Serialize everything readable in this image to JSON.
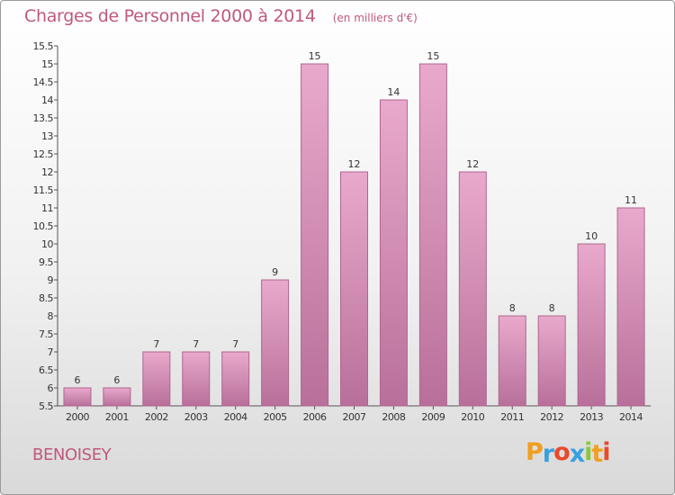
{
  "title": "Charges de Personnel 2000 à 2014",
  "subtitle": "(en milliers d'€)",
  "commune": "BENOISEY",
  "logo": {
    "text": "Proxiti",
    "letters": [
      {
        "ch": "P",
        "color": "#f0a020"
      },
      {
        "ch": "r",
        "color": "#3aa0e0"
      },
      {
        "ch": "o",
        "color": "#e84a2a"
      },
      {
        "ch": "x",
        "color": "#3aa0e0"
      },
      {
        "ch": "i",
        "color": "#8ac83a"
      },
      {
        "ch": "t",
        "color": "#f0a020"
      },
      {
        "ch": "i",
        "color": "#e84a2a"
      }
    ]
  },
  "colors": {
    "bar_top": "#e9a9cc",
    "bar_bottom": "#b8709a",
    "bar_border": "#b06590",
    "title": "#c0587e",
    "text": "#333333"
  },
  "chart_data": {
    "type": "bar",
    "categories": [
      "2000",
      "2001",
      "2002",
      "2003",
      "2004",
      "2005",
      "2006",
      "2007",
      "2008",
      "2009",
      "2010",
      "2011",
      "2012",
      "2013",
      "2014"
    ],
    "values": [
      6,
      6,
      7,
      7,
      7,
      9,
      15,
      12,
      14,
      15,
      12,
      8,
      8,
      10,
      11
    ],
    "ylim": [
      5.5,
      15.5
    ],
    "yticks": [
      "5.5",
      "6",
      "6.5",
      "7",
      "7.5",
      "8",
      "8.5",
      "9",
      "9.5",
      "10",
      "10.5",
      "11",
      "11.5",
      "12",
      "12.5",
      "13",
      "13.5",
      "14",
      "14.5",
      "15",
      "15.5"
    ],
    "grid": false
  }
}
